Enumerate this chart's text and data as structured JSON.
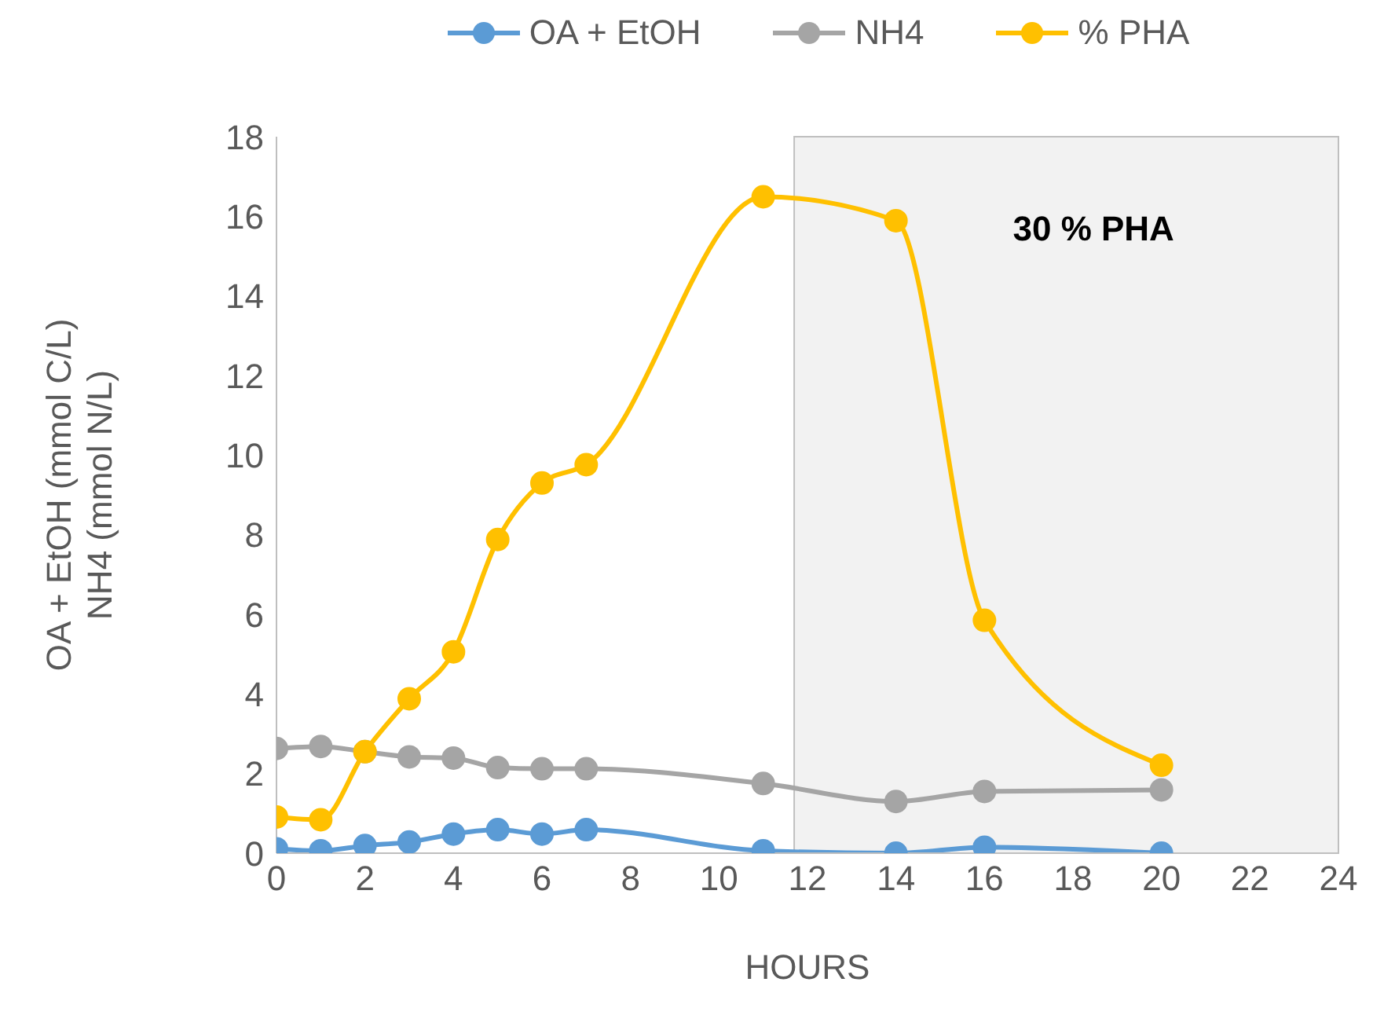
{
  "chart_data": {
    "type": "line",
    "xlabel": "HOURS",
    "ylabel": "OA + EtOH (mmol C/L)\nNH4 (mmol N/L)",
    "x": [
      0,
      1,
      2,
      3,
      4,
      5,
      6,
      7,
      11,
      14,
      16,
      20
    ],
    "series": [
      {
        "name": "OA + EtOH",
        "color": "#5b9bd5",
        "values": [
          0.11,
          0.06,
          0.19,
          0.28,
          0.48,
          0.59,
          0.48,
          0.59,
          0.06,
          0.0,
          0.15,
          0.0
        ]
      },
      {
        "name": "NH4",
        "color": "#a5a5a5",
        "values": [
          2.63,
          2.68,
          2.55,
          2.42,
          2.39,
          2.15,
          2.12,
          2.12,
          1.75,
          1.3,
          1.55,
          1.59
        ]
      },
      {
        "name": "% PHA",
        "color": "#ffc000",
        "values": [
          0.91,
          0.84,
          2.55,
          3.88,
          5.06,
          7.88,
          9.3,
          9.76,
          16.49,
          15.89,
          5.85,
          2.21
        ]
      }
    ],
    "xlim": [
      0,
      24
    ],
    "xticks": [
      0,
      2,
      4,
      6,
      8,
      10,
      12,
      14,
      16,
      18,
      20,
      22,
      24
    ],
    "ylim": [
      0,
      18
    ],
    "yticks": [
      0,
      2,
      4,
      6,
      8,
      10,
      12,
      14,
      16,
      18
    ],
    "bands": [
      {
        "axis": "x",
        "from": 11.7,
        "to": 24,
        "label": "30 % PHA",
        "color": "#f2f2f2"
      }
    ],
    "grid": false,
    "legend": "top",
    "marker": "circle",
    "line_style": "solid"
  }
}
